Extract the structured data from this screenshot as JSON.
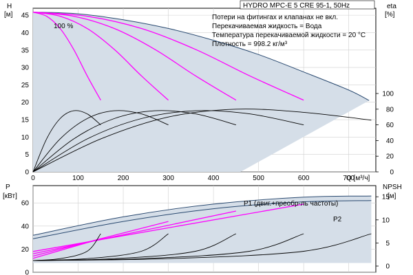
{
  "chart_data": [
    {
      "type": "line",
      "panel": "top",
      "title": "HYDRO MPC-E 5 CRE 95-1, 50Hz",
      "annotations": [
        "Потери на фитингах и клапанах не вкл.",
        "Перекачиваемая жидкость = Вода",
        "Температура перекачиваемой жидкости = 20 °C",
        "Плотность = 998.2 кг/м³"
      ],
      "speed_label": "100 %",
      "xlabel": "Q [м³/ч]",
      "ylabel_left": [
        "H",
        "[м]"
      ],
      "ylabel_right": [
        "eta",
        "[%]"
      ],
      "xlim": [
        0,
        760
      ],
      "ylim_left": [
        0,
        47
      ],
      "ylim_right_ticks": [
        0,
        20,
        40,
        60,
        80,
        100
      ],
      "xticks": [
        0,
        100,
        200,
        300,
        400,
        500,
        600,
        700
      ],
      "yticks_left": [
        0,
        5,
        10,
        15,
        20,
        25,
        30,
        35,
        40,
        45
      ],
      "grid": true,
      "colors": {
        "envelope": "#d5dee8",
        "envelope_edge": "#27476e",
        "head": "#ff00ff",
        "eta": "#000000"
      },
      "envelope_top": {
        "x": [
          0,
          100,
          200,
          300,
          400,
          500,
          600,
          700,
          745
        ],
        "y": [
          45.9,
          45.4,
          43.7,
          41.2,
          37.8,
          33.7,
          28.7,
          23.5,
          20.5
        ]
      },
      "series": [
        {
          "kind": "head",
          "x": [
            0,
            30,
            60,
            90,
            120,
            150
          ],
          "y": [
            45.9,
            44.7,
            41.2,
            35.2,
            27.6,
            20.6
          ]
        },
        {
          "kind": "head",
          "x": [
            0,
            60,
            120,
            180,
            240,
            300
          ],
          "y": [
            45.9,
            44.7,
            41.2,
            35.2,
            27.6,
            20.6
          ]
        },
        {
          "kind": "head",
          "x": [
            0,
            90,
            180,
            270,
            360,
            450
          ],
          "y": [
            45.9,
            44.7,
            41.2,
            35.2,
            27.6,
            20.6
          ]
        },
        {
          "kind": "head",
          "x": [
            0,
            120,
            240,
            360,
            480,
            600
          ],
          "y": [
            45.9,
            44.7,
            41.2,
            35.2,
            27.6,
            20.6
          ]
        },
        {
          "kind": "eta",
          "x": [
            0,
            30,
            60,
            90,
            120,
            150
          ],
          "y": [
            0,
            42,
            68,
            78,
            74,
            60
          ]
        },
        {
          "kind": "eta",
          "x": [
            0,
            60,
            120,
            180,
            240,
            300
          ],
          "y": [
            0,
            42,
            68,
            78,
            74,
            60
          ]
        },
        {
          "kind": "eta",
          "x": [
            0,
            90,
            180,
            270,
            360,
            450
          ],
          "y": [
            0,
            42,
            68,
            78,
            74,
            60
          ]
        },
        {
          "kind": "eta",
          "x": [
            0,
            120,
            240,
            360,
            480,
            600
          ],
          "y": [
            0,
            42,
            68,
            78,
            74,
            60
          ]
        },
        {
          "kind": "eta",
          "x": [
            0,
            150,
            300,
            450,
            600,
            750
          ],
          "y": [
            0,
            42,
            70,
            80,
            76,
            66
          ]
        }
      ]
    },
    {
      "type": "line",
      "panel": "bottom",
      "xlim": [
        0,
        760
      ],
      "ylabel_left": [
        "P",
        "[кВт]"
      ],
      "ylabel_right": [
        "NPSH",
        "[м]"
      ],
      "yticks_left": [
        0,
        20,
        40,
        60
      ],
      "yticks_right": [
        0,
        5,
        10,
        15
      ],
      "ylim_left": [
        0,
        75
      ],
      "legend": [
        "P1 (двиг.+преобр-ль частоты)",
        "P2"
      ],
      "envelope": {
        "p1": {
          "x": [
            0,
            200,
            400,
            600,
            750
          ],
          "y": [
            32,
            48,
            59,
            65,
            66
          ]
        },
        "p2": {
          "x": [
            0,
            200,
            400,
            600,
            750
          ],
          "y": [
            29,
            44,
            55,
            61,
            62
          ]
        }
      },
      "series": [
        {
          "kind": "power",
          "x": [
            0,
            150
          ],
          "y": [
            12,
            29
          ]
        },
        {
          "kind": "power",
          "x": [
            0,
            300
          ],
          "y": [
            14,
            44
          ]
        },
        {
          "kind": "power",
          "x": [
            0,
            450
          ],
          "y": [
            16,
            53
          ]
        },
        {
          "kind": "power",
          "x": [
            0,
            600
          ],
          "y": [
            18,
            59
          ]
        },
        {
          "kind": "npsh",
          "x": [
            0,
            60,
            120,
            150
          ],
          "y": [
            1.2,
            1.6,
            3.2,
            7
          ]
        },
        {
          "kind": "npsh",
          "x": [
            0,
            120,
            240,
            300
          ],
          "y": [
            1.2,
            1.6,
            3.2,
            7
          ]
        },
        {
          "kind": "npsh",
          "x": [
            0,
            180,
            360,
            450
          ],
          "y": [
            1.2,
            1.6,
            3.2,
            7
          ]
        },
        {
          "kind": "npsh",
          "x": [
            0,
            240,
            480,
            600
          ],
          "y": [
            1.2,
            1.6,
            3.2,
            7
          ]
        },
        {
          "kind": "npsh",
          "x": [
            0,
            300,
            600,
            750
          ],
          "y": [
            1.2,
            1.6,
            3.2,
            7
          ]
        }
      ]
    }
  ]
}
